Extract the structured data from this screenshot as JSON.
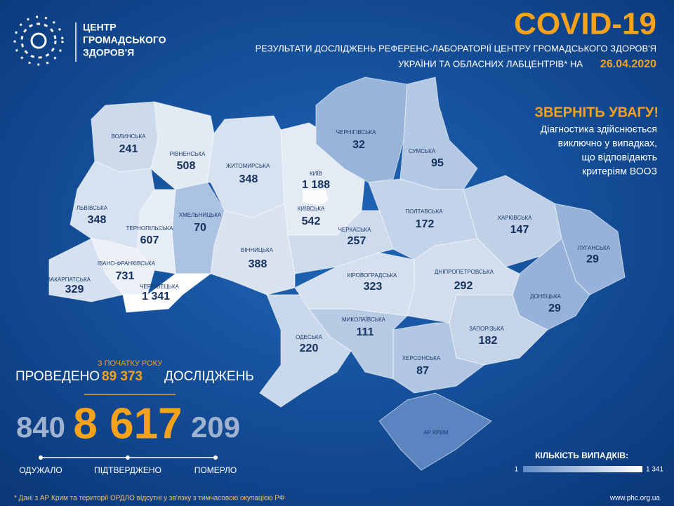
{
  "header": {
    "logo": [
      "ЦЕНТР",
      "ГРОМАДСЬКОГО",
      "ЗДОРОВ'Я"
    ],
    "title": "COVID-19",
    "subtitle_line1": "РЕЗУЛЬТАТИ ДОСЛІДЖЕНЬ РЕФЕРЕНС-ЛАБОРАТОРІЇ ЦЕНТРУ ГРОМАДСЬКОГО ЗДОРОВ'Я",
    "subtitle_line2": "УКРАЇНИ ТА ОБЛАСНИХ ЛАБЦЕНТРІВ* НА",
    "date": "26.04.2020"
  },
  "notice": {
    "title": "ЗВЕРНІТЬ УВАГУ!",
    "lines": [
      "Діагностика здійснюється",
      "виключно у випадках,",
      "що відповідають",
      "критеріям ВООЗ"
    ]
  },
  "regions": [
    {
      "name": "ВОЛИНСЬКА",
      "value": 241
    },
    {
      "name": "РІВНЕНСЬКА",
      "value": 508
    },
    {
      "name": "ЖИТОМИРСЬКА",
      "value": 348
    },
    {
      "name": "КИЇВСЬКА",
      "value": 542
    },
    {
      "name": "КИЇВ",
      "value": 1188,
      "value_label": "1 188"
    },
    {
      "name": "ЧЕРНІГІВСЬКА",
      "value": 32
    },
    {
      "name": "СУМСЬКА",
      "value": 95
    },
    {
      "name": "ПОЛТАВСЬКА",
      "value": 172
    },
    {
      "name": "ХАРКІВСЬКА",
      "value": 147
    },
    {
      "name": "ЛУГАНСЬКА",
      "value": 29
    },
    {
      "name": "ДОНЕЦЬКА",
      "value": 29
    },
    {
      "name": "ЗАПОРІЗЬКА",
      "value": 182
    },
    {
      "name": "ДНІПРОПЕТРОВСЬКА",
      "value": 292
    },
    {
      "name": "ХЕРСОНСЬКА",
      "value": 87
    },
    {
      "name": "АР КРИМ"
    },
    {
      "name": "МИКОЛАЇВСЬКА",
      "value": 111
    },
    {
      "name": "ОДЕСЬКА",
      "value": 220
    },
    {
      "name": "КІРОВОГРАДСЬКА",
      "value": 323
    },
    {
      "name": "ЧЕРКАСЬКА",
      "value": 257
    },
    {
      "name": "ВІННИЦЬКА",
      "value": 388
    },
    {
      "name": "ХМЕЛЬНИЦЬКА",
      "value": 70
    },
    {
      "name": "ТЕРНОПІЛЬСЬКА",
      "value": 607
    },
    {
      "name": "ЛЬВІВСЬКА",
      "value": 348
    },
    {
      "name": "ІВАНО-ФРАНКІВСЬКА",
      "value": 731
    },
    {
      "name": "ЗАКАРПАТСЬКА",
      "value": 329
    },
    {
      "name": "ЧЕРНІВЕЦЬКА",
      "value": 1341,
      "value_label": "1 341"
    }
  ],
  "stats": {
    "since": "З ПОЧАТКУ РОКУ",
    "tests_prefix": "ПРОВЕДЕНО",
    "tests": "89 373",
    "tests_suffix": "ДОСЛІДЖЕНЬ",
    "recovered": "840",
    "recovered_label": "ОДУЖАЛО",
    "confirmed": "8 617",
    "confirmed_label": "ПІДТВЕРДЖЕНО",
    "deaths": "209",
    "deaths_label": "ПОМЕРЛО"
  },
  "legend": {
    "title": "КІЛЬКІСТЬ ВИПАДКІВ:",
    "min": 1,
    "max": {
      "value": 1341,
      "label": "1 341"
    }
  },
  "footer": {
    "note": "* Дані з АР Крим та території ОРДЛО відсутні у зв'язку з тимчасовою окупацією РФ",
    "url": "www.phc.org.ua"
  }
}
